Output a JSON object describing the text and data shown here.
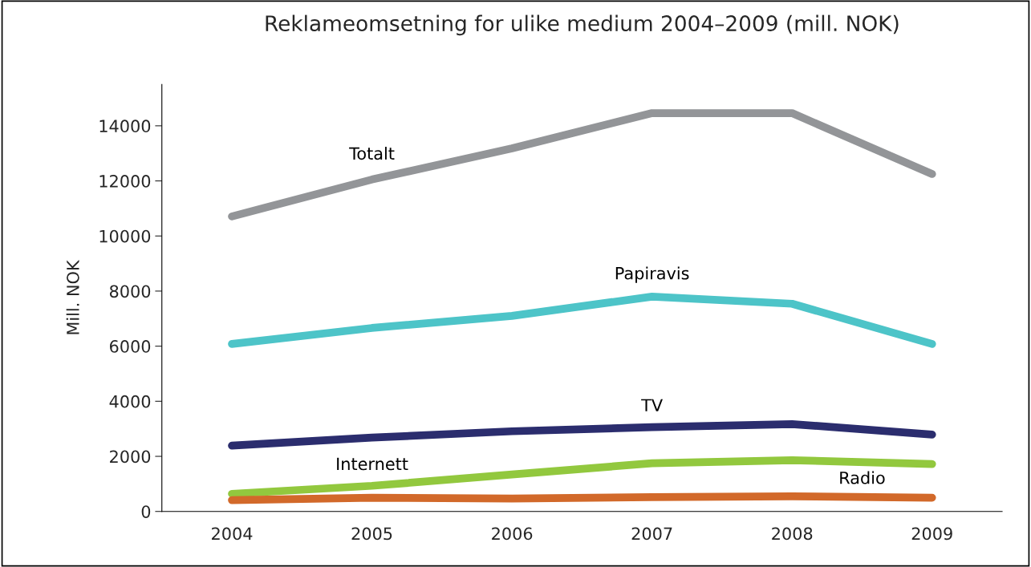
{
  "chart_data": {
    "type": "line",
    "title": "Reklameomsetning for ulike medium 2004–2009 (mill. NOK)",
    "ylabel": "Mill. NOK",
    "categories": [
      "2004",
      "2005",
      "2006",
      "2007",
      "2008",
      "2009"
    ],
    "series": [
      {
        "name": "Totalt",
        "color": "#939598",
        "values": [
          10710,
          12050,
          13180,
          14460,
          14460,
          12250
        ]
      },
      {
        "name": "Papiravis",
        "color": "#4dc4c8",
        "values": [
          6080,
          6660,
          7100,
          7800,
          7540,
          6080
        ]
      },
      {
        "name": "TV",
        "color": "#2b2d6e",
        "values": [
          2390,
          2680,
          2910,
          3060,
          3170,
          2790
        ]
      },
      {
        "name": "Internett",
        "color": "#92c83e",
        "values": [
          640,
          930,
          1340,
          1750,
          1860,
          1720
        ]
      },
      {
        "name": "Radio",
        "color": "#d2692a",
        "values": [
          410,
          500,
          470,
          520,
          550,
          500
        ]
      }
    ],
    "ylim": [
      0,
      15500
    ],
    "yticks": [
      0,
      2000,
      4000,
      6000,
      8000,
      10000,
      12000,
      14000
    ],
    "grid": false,
    "legend": false,
    "line_style": "solid",
    "marker": "none"
  }
}
